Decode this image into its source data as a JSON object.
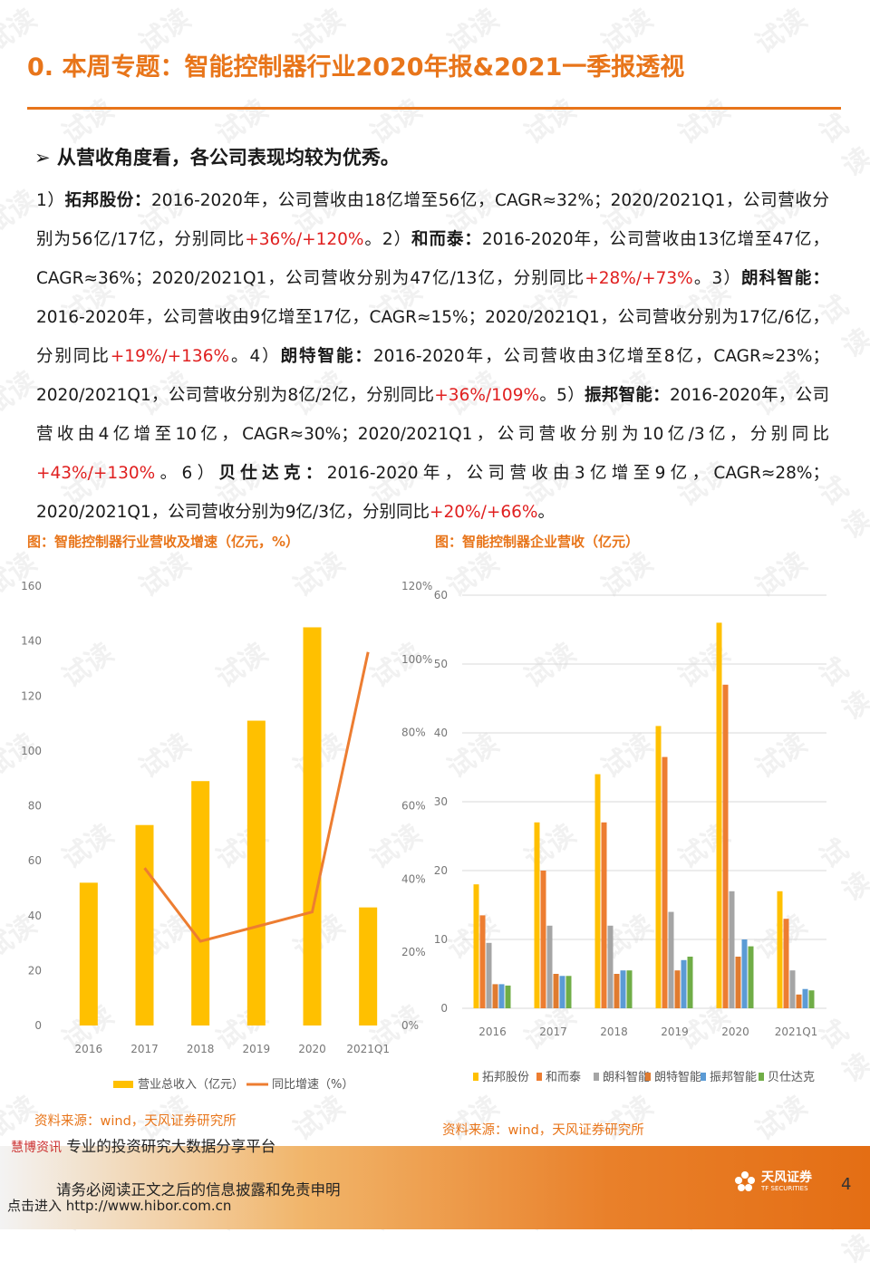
{
  "page": {
    "title": "0. 本周专题：智能控制器行业2020年报&2021一季报透视",
    "headline": "从营收角度看，各公司表现均较为优秀。",
    "paragraph": [
      {
        "t": "1）"
      },
      {
        "t": "拓邦股份：",
        "b": true
      },
      {
        "t": "2016-2020年，公司营收由18亿增至56亿，CAGR≈32%；2020/2021Q1，公司营收分别为56亿/17亿，分别同比"
      },
      {
        "t": "+36%/+120%",
        "r": true
      },
      {
        "t": "。2）"
      },
      {
        "t": "和而泰：",
        "b": true
      },
      {
        "t": "2016-2020年，公司营收由13亿增至47亿，CAGR≈36%；2020/2021Q1，公司营收分别为47亿/13亿，分别同比"
      },
      {
        "t": "+28%/+73%",
        "r": true
      },
      {
        "t": "。3）"
      },
      {
        "t": "朗科智能：",
        "b": true
      },
      {
        "t": "2016-2020年，公司营收由9亿增至17亿，CAGR≈15%；2020/2021Q1，公司营收分别为17亿/6亿，分别同比"
      },
      {
        "t": "+19%/+136%",
        "r": true
      },
      {
        "t": "。4）"
      },
      {
        "t": "朗特智能：",
        "b": true
      },
      {
        "t": "2016-2020年，公司营收由3亿增至8亿，CAGR≈23%；2020/2021Q1，公司营收分别为8亿/2亿，分别同比"
      },
      {
        "t": "+36%/109%",
        "r": true
      },
      {
        "t": "。5）"
      },
      {
        "t": "振邦智能：",
        "b": true
      },
      {
        "t": "2016-2020年，公司营收由4亿增至10亿，CAGR≈30%；2020/2021Q1，公司营收分别为10亿/3亿，分别同比"
      },
      {
        "t": "+43%/+130%",
        "r": true
      },
      {
        "t": "。6）"
      },
      {
        "t": "贝仕达克：",
        "b": true
      },
      {
        "t": "2016-2020年，公司营收由3亿增至9亿，CAGR≈28%；2020/2021Q1，公司营收分别为9亿/3亿，分别同比"
      },
      {
        "t": "+20%/+66%",
        "r": true
      },
      {
        "t": "。"
      }
    ],
    "source_left": "资料来源：wind，天风证券研究所",
    "source_right": "资料来源：wind，天风证券研究所",
    "watermark": "试读",
    "footer_brand": "慧博资讯",
    "footer_slogan": "专业的投资研究大数据分享平台",
    "footer_notice": "请务必阅读正文之后的信息披露和免责申明",
    "footer_link": "点击进入 http://www.hibor.com.cn",
    "logo_text": "天风证券",
    "logo_sub": "TF SECURITIES",
    "page_number": "4"
  },
  "chart_data": [
    {
      "type": "bar",
      "title": "图：智能控制器行业营收及增速（亿元，%）",
      "categories": [
        "2016",
        "2017",
        "2018",
        "2019",
        "2020",
        "2021Q1"
      ],
      "series": [
        {
          "name": "营业总收入（亿元）",
          "type": "bar",
          "axis": "left",
          "color": "#ffc000",
          "values": [
            52,
            73,
            89,
            111,
            145,
            43
          ]
        },
        {
          "name": "同比增速（%）",
          "type": "line",
          "axis": "right",
          "color": "#ed7d31",
          "values": [
            null,
            43,
            23,
            27,
            31,
            102
          ]
        }
      ],
      "ylim": [
        0,
        160
      ],
      "yticks": [
        0,
        20,
        40,
        60,
        80,
        100,
        120,
        140,
        160
      ],
      "y2lim": [
        0,
        120
      ],
      "y2ticks": [
        "0%",
        "20%",
        "40%",
        "60%",
        "80%",
        "100%",
        "120%"
      ],
      "legend": "bottom",
      "grid": false
    },
    {
      "type": "bar",
      "title": "图：智能控制器企业营收（亿元）",
      "categories": [
        "2016",
        "2017",
        "2018",
        "2019",
        "2020",
        "2021Q1"
      ],
      "series": [
        {
          "name": "拓邦股份",
          "color": "#ffc000",
          "values": [
            18,
            27,
            34,
            41,
            56,
            17
          ]
        },
        {
          "name": "和而泰",
          "color": "#ed7d31",
          "values": [
            13.5,
            20,
            27,
            36.5,
            47,
            13
          ]
        },
        {
          "name": "朗科智能",
          "color": "#a5a5a5",
          "values": [
            9.5,
            12,
            12,
            14,
            17,
            5.5
          ]
        },
        {
          "name": "朗特智能",
          "color": "#e07b2f",
          "values": [
            3.5,
            5,
            5,
            5.5,
            7.5,
            2
          ]
        },
        {
          "name": "振邦智能",
          "color": "#5b9bd5",
          "values": [
            3.5,
            4.7,
            5.5,
            7,
            10,
            2.8
          ]
        },
        {
          "name": "贝仕达克",
          "color": "#70ad47",
          "values": [
            3.3,
            4.7,
            5.5,
            7.5,
            9,
            2.6
          ]
        }
      ],
      "ylim": [
        0,
        60
      ],
      "yticks": [
        0,
        10,
        20,
        30,
        40,
        50,
        60
      ],
      "legend": "bottom",
      "grid": true
    }
  ]
}
